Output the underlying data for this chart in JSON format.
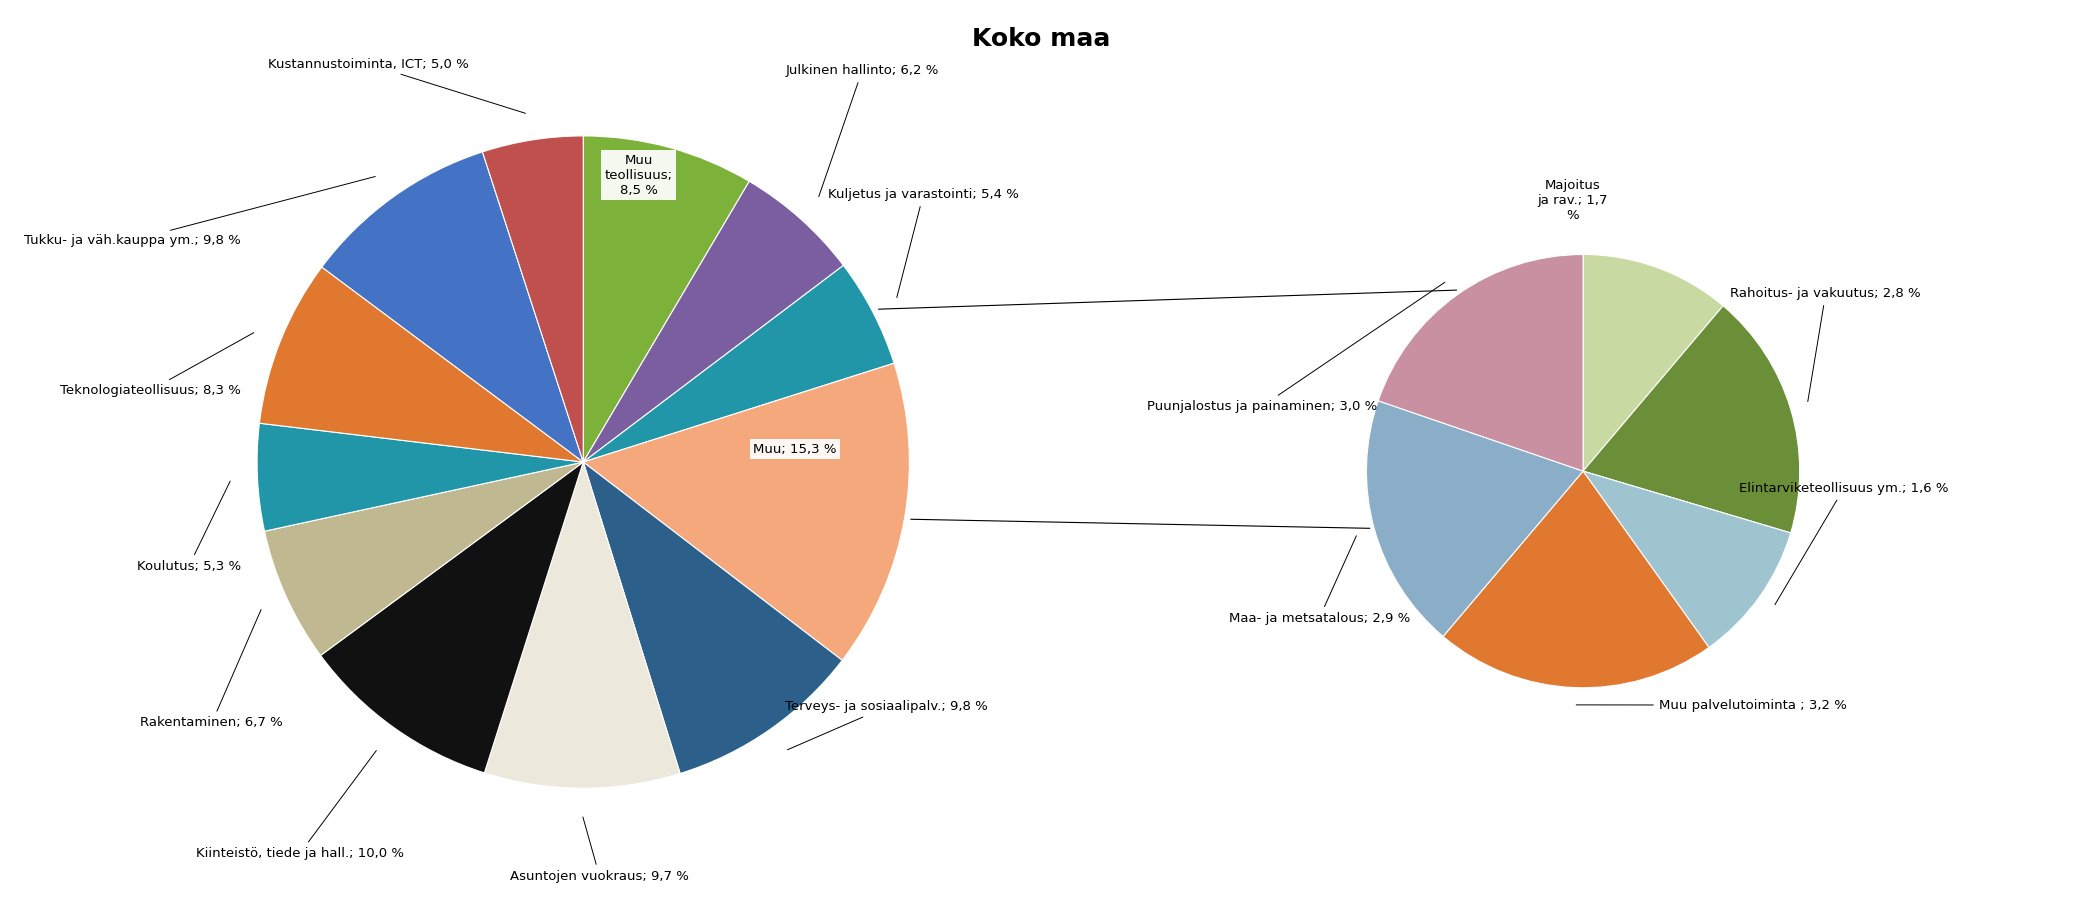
{
  "title": "Koko maa",
  "title_fontsize": 18,
  "title_fontweight": "bold",
  "background_color": "#ffffff",
  "main_pie": {
    "values": [
      8.5,
      6.2,
      5.4,
      15.3,
      9.8,
      9.7,
      10.0,
      6.7,
      5.3,
      8.3,
      9.8,
      5.0
    ],
    "colors": [
      "#7db23a",
      "#7b5ea0",
      "#2196a8",
      "#f4a87c",
      "#2c5f8a",
      "#ede8dc",
      "#111111",
      "#c0b890",
      "#2196a8",
      "#e07830",
      "#4472c4",
      "#c0504d"
    ],
    "startangle": 90
  },
  "small_pie": {
    "values": [
      1.7,
      2.8,
      1.6,
      3.2,
      2.9,
      3.0
    ],
    "colors": [
      "#c8d9a2",
      "#6b8e38",
      "#9ec4d0",
      "#e07830",
      "#8aaec8",
      "#c890a0"
    ],
    "startangle": 90
  }
}
